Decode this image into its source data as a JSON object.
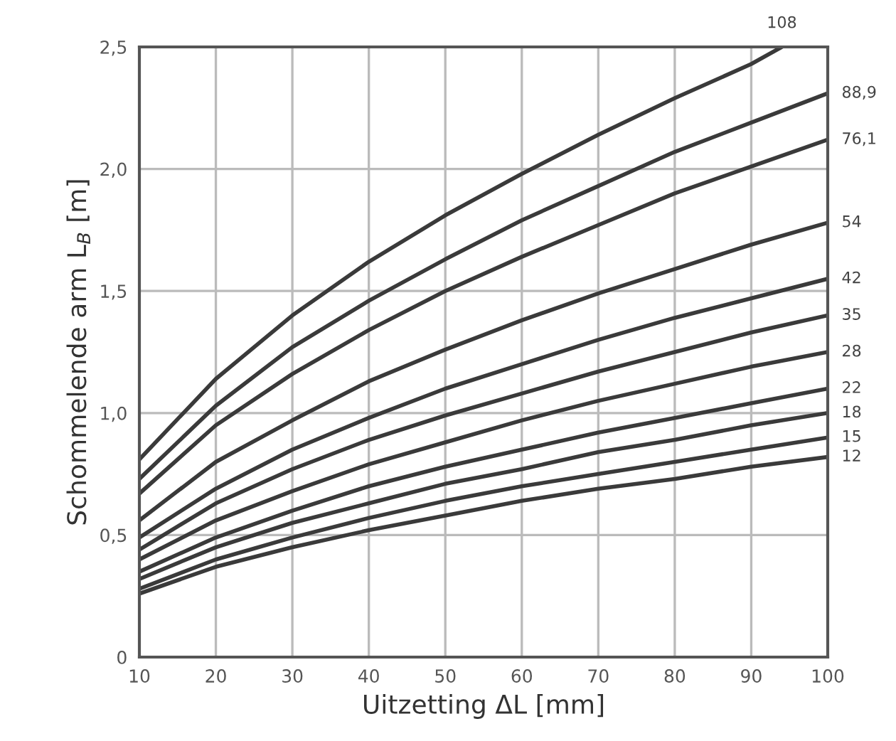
{
  "chart_data": {
    "type": "line",
    "xlabel": "Uitzetting ΔL [mm]",
    "ylabel": "Schommelende arm L$_{B}$ [m]",
    "x": [
      10,
      20,
      30,
      40,
      50,
      60,
      70,
      80,
      90,
      100
    ],
    "series": [
      {
        "name": "12",
        "color": "#3a3a3a",
        "values": [
          0.26,
          0.37,
          0.45,
          0.52,
          0.58,
          0.64,
          0.69,
          0.73,
          0.78,
          0.82
        ]
      },
      {
        "name": "15",
        "color": "#3a3a3a",
        "values": [
          0.28,
          0.4,
          0.49,
          0.57,
          0.64,
          0.7,
          0.75,
          0.8,
          0.85,
          0.9
        ]
      },
      {
        "name": "18",
        "color": "#3a3a3a",
        "values": [
          0.32,
          0.45,
          0.55,
          0.63,
          0.71,
          0.77,
          0.84,
          0.89,
          0.95,
          1.0
        ]
      },
      {
        "name": "22",
        "color": "#3a3a3a",
        "values": [
          0.35,
          0.49,
          0.6,
          0.7,
          0.78,
          0.85,
          0.92,
          0.98,
          1.04,
          1.1
        ]
      },
      {
        "name": "28",
        "color": "#3a3a3a",
        "values": [
          0.4,
          0.56,
          0.68,
          0.79,
          0.88,
          0.97,
          1.05,
          1.12,
          1.19,
          1.25
        ]
      },
      {
        "name": "35",
        "color": "#3a3a3a",
        "values": [
          0.44,
          0.63,
          0.77,
          0.89,
          0.99,
          1.08,
          1.17,
          1.25,
          1.33,
          1.4
        ]
      },
      {
        "name": "42",
        "color": "#3a3a3a",
        "values": [
          0.49,
          0.69,
          0.85,
          0.98,
          1.1,
          1.2,
          1.3,
          1.39,
          1.47,
          1.55
        ]
      },
      {
        "name": "54",
        "color": "#3a3a3a",
        "values": [
          0.56,
          0.8,
          0.97,
          1.13,
          1.26,
          1.38,
          1.49,
          1.59,
          1.69,
          1.78
        ]
      },
      {
        "name": "76,1",
        "color": "#3a3a3a",
        "values": [
          0.67,
          0.95,
          1.16,
          1.34,
          1.5,
          1.64,
          1.77,
          1.9,
          2.01,
          2.12
        ]
      },
      {
        "name": "88,9",
        "color": "#3a3a3a",
        "values": [
          0.73,
          1.03,
          1.27,
          1.46,
          1.63,
          1.79,
          1.93,
          2.07,
          2.19,
          2.31
        ]
      },
      {
        "name": "108",
        "color": "#3a3a3a",
        "x": [
          10,
          20,
          30,
          40,
          50,
          60,
          70,
          80,
          90,
          94
        ],
        "values": [
          0.81,
          1.14,
          1.4,
          1.62,
          1.81,
          1.98,
          2.14,
          2.29,
          2.43,
          2.5
        ]
      }
    ],
    "xlim": [
      10,
      100
    ],
    "xticks": [
      10,
      20,
      30,
      40,
      50,
      60,
      70,
      80,
      90,
      100
    ],
    "ylim": [
      0,
      2.5
    ],
    "yticks": [
      0,
      {
        "value": 0.5,
        "label": "0,5"
      },
      {
        "value": 1.0,
        "label": "1,0"
      },
      {
        "value": 1.5,
        "label": "1,5"
      },
      {
        "value": 2.0,
        "label": "2,0"
      },
      {
        "value": 2.5,
        "label": "2,5"
      }
    ],
    "grid": true,
    "marker": "none",
    "line_style": "solid",
    "legend": false
  }
}
